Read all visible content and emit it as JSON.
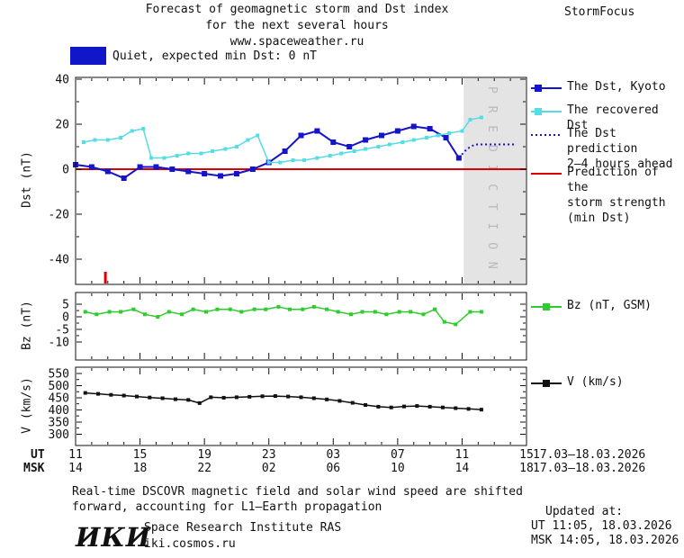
{
  "header": {
    "title_line1": "Forecast of geomagnetic storm and Dst index",
    "title_line2": "for the next several hours",
    "title_line3": "www.spaceweather.ru",
    "brand": "StormFocus"
  },
  "status": {
    "label": "Quiet, expected min Dst: 0 nT"
  },
  "colors": {
    "kyoto": "#1414cc",
    "recovered": "#55dde6",
    "prediction": "#1414cc",
    "zero": "#dd0000",
    "bz": "#2ecc2e",
    "v": "#111111",
    "band": "#e4e4e4",
    "band_text": "#b9b9b9",
    "status_swatch": "#0f17c8"
  },
  "legend": {
    "dst_kyoto": "The Dst, Kyoto",
    "recovered": "The recovered Dst",
    "prediction_line1": "The Dst prediction",
    "prediction_line2": "2–4 hours ahead",
    "strength_line1": "Prediction of the",
    "strength_line2": "storm strength",
    "strength_line3": "(min Dst)",
    "bz": "Bz (nT, GSM)",
    "v": "V (km/s)"
  },
  "xaxis": {
    "ut_label": "UT",
    "msk_label": "MSK",
    "tick_hours": [
      0,
      4,
      8,
      12,
      16,
      20,
      24,
      28
    ],
    "ut_ticks": [
      "11",
      "15",
      "19",
      "23",
      "03",
      "07",
      "11",
      "15"
    ],
    "msk_ticks": [
      "14",
      "18",
      "22",
      "02",
      "06",
      "10",
      "14",
      "18"
    ],
    "ut_date": "17.03–18.03.2026",
    "msk_date": "17.03–18.03.2026"
  },
  "footer": {
    "note_line1": "Real-time DSCOVR magnetic field and solar wind speed are shifted",
    "note_line2": "forward, accounting for L1–Earth propagation",
    "logo": "ИКИ",
    "institute": "Space Research Institute RAS",
    "site": "iki.cosmos.ru",
    "updated_label": "Updated at:",
    "updated_ut": "UT  11:05, 18.03.2026",
    "updated_msk": "MSK 14:05, 18.03.2026"
  },
  "chart_data": [
    {
      "id": "dst-panel",
      "type": "line",
      "ylabel": "Dst (nT)",
      "xlim": [
        0,
        28
      ],
      "ylim": [
        -51.2,
        40.8
      ],
      "yticks": [
        40,
        20,
        0,
        -20,
        -40
      ],
      "zero_line": 0,
      "onset_marker_x": 1.85,
      "prediction_band": {
        "start": 24.1,
        "end": 28,
        "label": "P R E D I C T I O N"
      },
      "series": [
        {
          "name": "The Dst, Kyoto",
          "key": "kyoto",
          "color": "#1414cc",
          "marker": "square",
          "marker_size": 6,
          "line_width": 2,
          "x": [
            0,
            1,
            2,
            3,
            4,
            5,
            6,
            7,
            8,
            9,
            10,
            11,
            12,
            13,
            14,
            15,
            16,
            17,
            18,
            19,
            20,
            21,
            22,
            23,
            23.8
          ],
          "y": [
            2,
            1,
            -1,
            -4,
            1,
            1,
            0,
            -1,
            -2,
            -3,
            -2,
            0,
            3,
            8,
            15,
            17,
            12,
            10,
            13,
            15,
            17,
            19,
            18,
            14,
            5
          ]
        },
        {
          "name": "The recovered Dst",
          "key": "recovered",
          "color": "#55dde6",
          "marker": "square",
          "marker_size": 4,
          "line_width": 1.5,
          "x": [
            0.5,
            1.2,
            2,
            2.8,
            3.5,
            4.2,
            4.7,
            5.5,
            6.3,
            7,
            7.8,
            8.5,
            9.3,
            10,
            10.7,
            11.3,
            12,
            12.7,
            13.5,
            14.2,
            15,
            15.8,
            16.5,
            17.3,
            18,
            18.8,
            19.5,
            20.3,
            21,
            21.8,
            22.5,
            23.2,
            24,
            24.5,
            25.2
          ],
          "y": [
            12,
            13,
            13,
            14,
            17,
            18,
            5,
            5,
            6,
            7,
            7,
            8,
            9,
            10,
            13,
            15,
            3,
            3,
            4,
            4,
            5,
            6,
            7,
            8,
            9,
            10,
            11,
            12,
            13,
            14,
            15,
            16,
            17,
            22,
            23
          ]
        },
        {
          "name": "The Dst prediction 2–4 hours ahead",
          "key": "prediction",
          "color": "#1414cc",
          "marker": "none",
          "dashed": true,
          "line_width": 2,
          "x": [
            23.8,
            24.3,
            24.8,
            25.3,
            25.8,
            26.3,
            26.8,
            27.3
          ],
          "y": [
            5,
            9,
            11,
            11,
            11,
            11,
            11,
            11
          ]
        }
      ]
    },
    {
      "id": "bz-panel",
      "type": "line",
      "ylabel": "Bz (nT)",
      "xlim": [
        0,
        28
      ],
      "ylim": [
        -17.2,
        9.7
      ],
      "yticks": [
        5,
        0,
        -5,
        -10
      ],
      "series": [
        {
          "name": "Bz (nT, GSM)",
          "key": "bz",
          "color": "#2ecc2e",
          "marker": "square",
          "marker_size": 4,
          "line_width": 1.5,
          "x": [
            0.6,
            1.3,
            2.1,
            2.8,
            3.6,
            4.3,
            5.1,
            5.8,
            6.6,
            7.3,
            8.1,
            8.8,
            9.6,
            10.3,
            11.1,
            11.8,
            12.6,
            13.3,
            14.1,
            14.8,
            15.6,
            16.3,
            17.1,
            17.8,
            18.6,
            19.3,
            20.1,
            20.8,
            21.6,
            22.3,
            22.9,
            23.6,
            24.5,
            25.2
          ],
          "y": [
            2,
            1,
            2,
            2,
            3,
            1,
            0,
            2,
            1,
            3,
            2,
            3,
            3,
            2,
            3,
            3,
            4,
            3,
            3,
            4,
            3,
            2,
            1,
            2,
            2,
            1,
            2,
            2,
            1,
            3,
            -2,
            -3,
            2,
            2
          ]
        }
      ]
    },
    {
      "id": "v-panel",
      "type": "line",
      "ylabel": "V (km/s)",
      "xlim": [
        0,
        28
      ],
      "ylim": [
        253,
        576
      ],
      "yticks": [
        550,
        500,
        450,
        400,
        350,
        300
      ],
      "series": [
        {
          "name": "V (km/s)",
          "key": "v",
          "color": "#111111",
          "marker": "square",
          "marker_size": 4,
          "line_width": 1.5,
          "x": [
            0.6,
            1.4,
            2.2,
            3,
            3.8,
            4.6,
            5.4,
            6.2,
            7,
            7.7,
            8.4,
            9.2,
            10,
            10.8,
            11.6,
            12.4,
            13.2,
            14,
            14.8,
            15.6,
            16.4,
            17.2,
            18,
            18.8,
            19.6,
            20.4,
            21.2,
            22,
            22.8,
            23.6,
            24.4,
            25.2
          ],
          "y": [
            470,
            466,
            462,
            459,
            455,
            451,
            448,
            444,
            441,
            428,
            452,
            450,
            452,
            454,
            456,
            457,
            455,
            452,
            448,
            443,
            437,
            429,
            420,
            413,
            410,
            414,
            416,
            413,
            410,
            407,
            404,
            401
          ]
        }
      ]
    }
  ]
}
